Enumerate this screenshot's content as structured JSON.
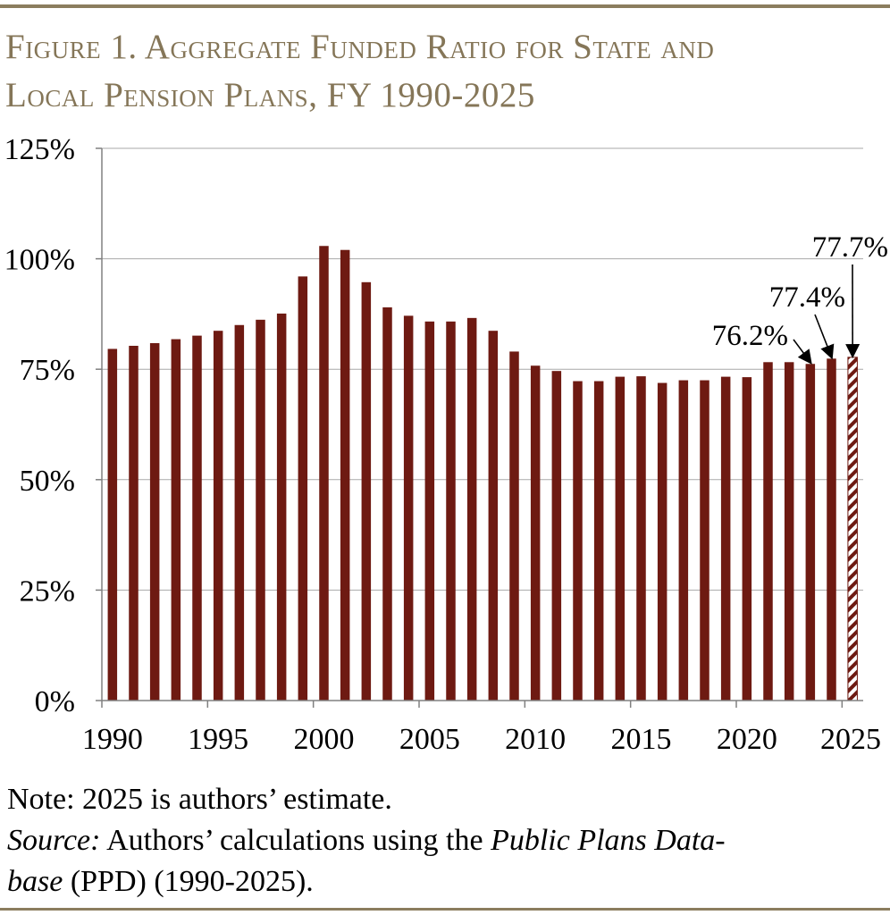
{
  "figure": {
    "title_line1": "Figure 1. Aggregate Funded Ratio for State and",
    "title_line2": "Local Pension Plans, FY 1990-2025"
  },
  "chart_data": {
    "type": "bar",
    "x": [
      1990,
      1991,
      1992,
      1993,
      1994,
      1995,
      1996,
      1997,
      1998,
      1999,
      2000,
      2001,
      2002,
      2003,
      2004,
      2005,
      2006,
      2007,
      2008,
      2009,
      2010,
      2011,
      2012,
      2013,
      2014,
      2015,
      2016,
      2017,
      2018,
      2019,
      2020,
      2021,
      2022,
      2023,
      2024,
      2025
    ],
    "values": [
      79.6,
      80.3,
      80.9,
      81.8,
      82.6,
      83.7,
      85.0,
      86.2,
      87.6,
      96.0,
      102.9,
      102.0,
      94.7,
      89.0,
      87.1,
      85.8,
      85.8,
      86.6,
      83.7,
      79.0,
      75.8,
      74.6,
      72.3,
      72.3,
      73.3,
      73.4,
      71.9,
      72.5,
      72.5,
      73.3,
      73.2,
      76.6,
      76.6,
      76.2,
      77.4,
      77.7
    ],
    "estimate_years": [
      2025
    ],
    "ylim": [
      0,
      125
    ],
    "yticks": [
      0,
      25,
      50,
      75,
      100,
      125
    ],
    "ytick_labels": [
      "0%",
      "25%",
      "50%",
      "75%",
      "100%",
      "125%"
    ],
    "xticks": [
      1990,
      1995,
      2000,
      2005,
      2010,
      2015,
      2020,
      2025
    ],
    "xtick_labels": [
      "1990",
      "1995",
      "2000",
      "2005",
      "2010",
      "2015",
      "2020",
      "2025"
    ],
    "annotations": [
      {
        "year": 2023,
        "label": "76.2%"
      },
      {
        "year": 2024,
        "label": "77.4%"
      },
      {
        "year": 2025,
        "label": "77.7%"
      }
    ],
    "xlabel": "",
    "ylabel": "",
    "grid": true,
    "colors": {
      "bar": "#6e1a12",
      "estimate_stripe": "#6e1a12",
      "grid": "#a9a9a9",
      "axis": "#808080"
    }
  },
  "note": {
    "note_text": "Note: 2025 is authors’ estimate.",
    "source_label": "Source:",
    "source_text1": " Authors’ calculations using the ",
    "source_italic1": "Public Plans Data-",
    "source_italic2": "base",
    "source_text2": " (PPD) (1990-2025)."
  },
  "colors": {
    "rule": "#8b7d5e",
    "title": "#857658"
  }
}
